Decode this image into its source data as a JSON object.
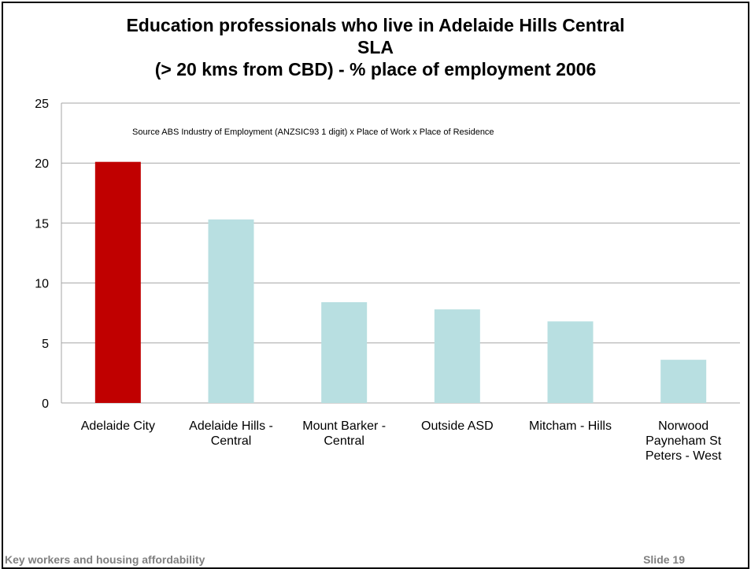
{
  "title_lines": [
    "Education professionals who live in Adelaide Hills Central",
    "SLA",
    "(> 20 kms from CBD) - % place of employment 2006"
  ],
  "footer": {
    "left": "Key workers and housing affordability",
    "right": "Slide 19"
  },
  "colors": {
    "highlight_bar": "#c00000",
    "bar": "#b8dfe1",
    "gridline": "#a6a6a6"
  },
  "chart_data": {
    "type": "bar",
    "title": "Education professionals who live in Adelaide Hills Central SLA (> 20 kms from CBD) - % place of employment 2006",
    "annotation": "Source ABS Industry of Employment (ANZSIC93 1 digit) x Place of Work x Place of Residence",
    "categories": [
      [
        "Adelaide City"
      ],
      [
        "Adelaide Hills -",
        "Central"
      ],
      [
        "Mount Barker -",
        "Central"
      ],
      [
        "Outside ASD"
      ],
      [
        "Mitcham - Hills"
      ],
      [
        "Norwood",
        "Payneham St",
        "Peters - West"
      ]
    ],
    "values": [
      20.1,
      15.3,
      8.4,
      7.8,
      6.8,
      3.6
    ],
    "highlight_index": 0,
    "ylim": [
      0,
      25
    ],
    "yticks": [
      0,
      5,
      10,
      15,
      20,
      25
    ],
    "xlabel": "",
    "ylabel": "",
    "grid": true,
    "legend": "none"
  }
}
